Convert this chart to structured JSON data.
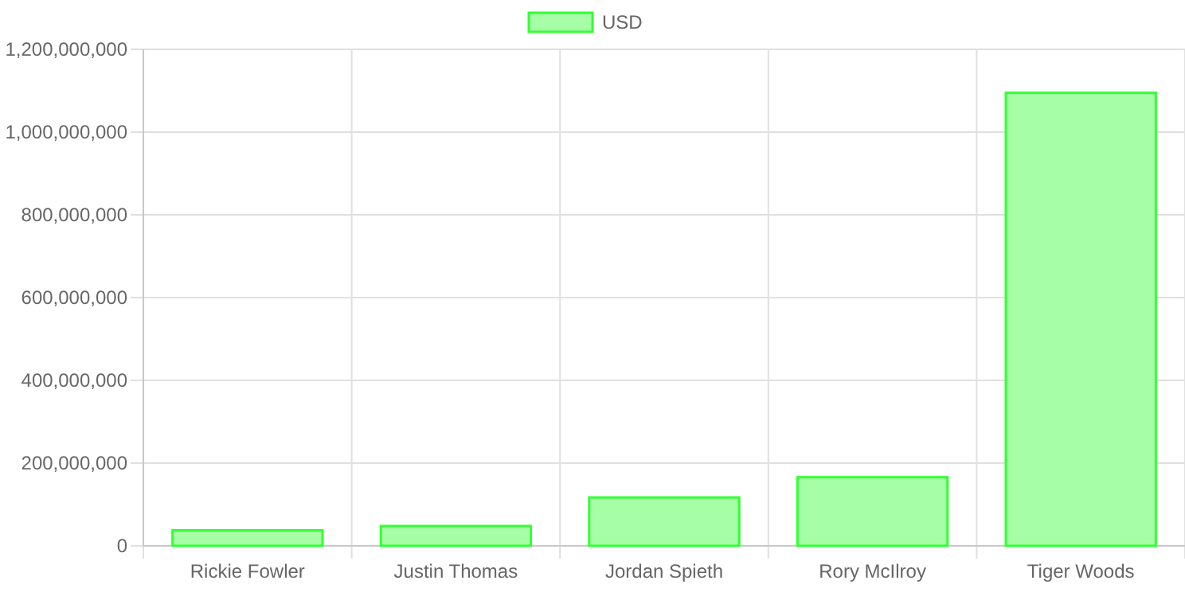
{
  "chart_data": {
    "type": "bar",
    "categories": [
      "Rickie Fowler",
      "Justin Thomas",
      "Jordan Spieth",
      "Rory McIlroy",
      "Tiger Woods"
    ],
    "series": [
      {
        "name": "USD",
        "color": "#a6ffa6",
        "values": [
          37500000,
          48000000,
          117000000,
          166000000,
          1095000000
        ]
      }
    ],
    "ylim": [
      0,
      1200000000
    ],
    "yticks": [
      {
        "value": 0,
        "label": "0"
      },
      {
        "value": 200000000,
        "label": "200,000,000"
      },
      {
        "value": 400000000,
        "label": "400,000,000"
      },
      {
        "value": 600000000,
        "label": "600,000,000"
      },
      {
        "value": 800000000,
        "label": "800,000,000"
      },
      {
        "value": 1000000000,
        "label": "1,000,000,000"
      },
      {
        "value": 1200000000,
        "label": "1,200,000,000"
      }
    ],
    "grid": true,
    "legend": "top"
  }
}
